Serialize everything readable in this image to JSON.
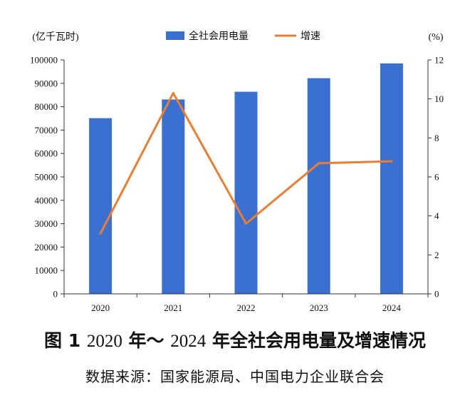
{
  "chart_data": {
    "type": "bar",
    "categories": [
      "2020",
      "2021",
      "2022",
      "2023",
      "2024"
    ],
    "series": [
      {
        "name": "全社会用电量",
        "type": "bar",
        "axis": "left",
        "color": "#3a70cf",
        "values": [
          75100,
          83100,
          86400,
          92200,
          98500
        ]
      },
      {
        "name": "增速",
        "type": "line",
        "axis": "right",
        "color": "#ed7d31",
        "values": [
          3.1,
          10.3,
          3.6,
          6.7,
          6.8
        ]
      }
    ],
    "y_left": {
      "label": "(亿千瓦时)",
      "min": 0,
      "max": 100000,
      "step": 10000,
      "ticks": [
        "0",
        "10000",
        "20000",
        "30000",
        "40000",
        "50000",
        "60000",
        "70000",
        "80000",
        "90000",
        "100000"
      ]
    },
    "y_right": {
      "label": "(%)",
      "min": 0,
      "max": 12,
      "step": 2,
      "ticks": [
        "0",
        "2",
        "4",
        "6",
        "8",
        "10",
        "12"
      ]
    },
    "legend_position": "top-center",
    "grid": false
  },
  "caption": {
    "prefix": "图 1",
    "year_start": "2020",
    "year_mid": " 年～ ",
    "year_end": "2024",
    "text": " 年全社会用电量及增速情况"
  },
  "source": "数据来源：国家能源局、中国电力企业联合会"
}
